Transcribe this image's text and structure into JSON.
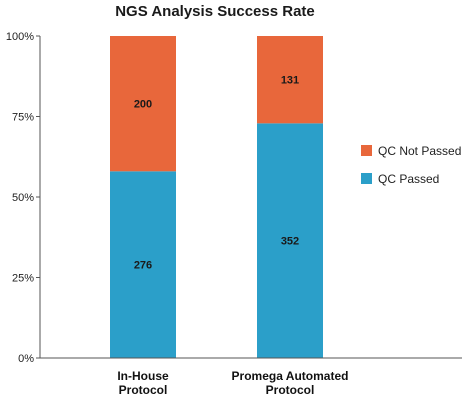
{
  "chart_data": {
    "type": "bar",
    "stacked": true,
    "normalized": true,
    "title": "NGS Analysis Success Rate",
    "xlabel": "",
    "ylabel": "",
    "categories": [
      [
        "In-House",
        "Protocol"
      ],
      [
        "Promega Automated",
        "Protocol"
      ]
    ],
    "series": [
      {
        "name": "QC Passed",
        "values": [
          276,
          352
        ],
        "color": "#2b9fc9"
      },
      {
        "name": "QC Not Passed",
        "values": [
          200,
          131
        ],
        "color": "#e8673b"
      }
    ],
    "y_ticks": [
      "0%",
      "25%",
      "50%",
      "75%",
      "100%"
    ],
    "ylim": [
      0,
      100
    ],
    "grid": false,
    "legend_position": "right"
  }
}
